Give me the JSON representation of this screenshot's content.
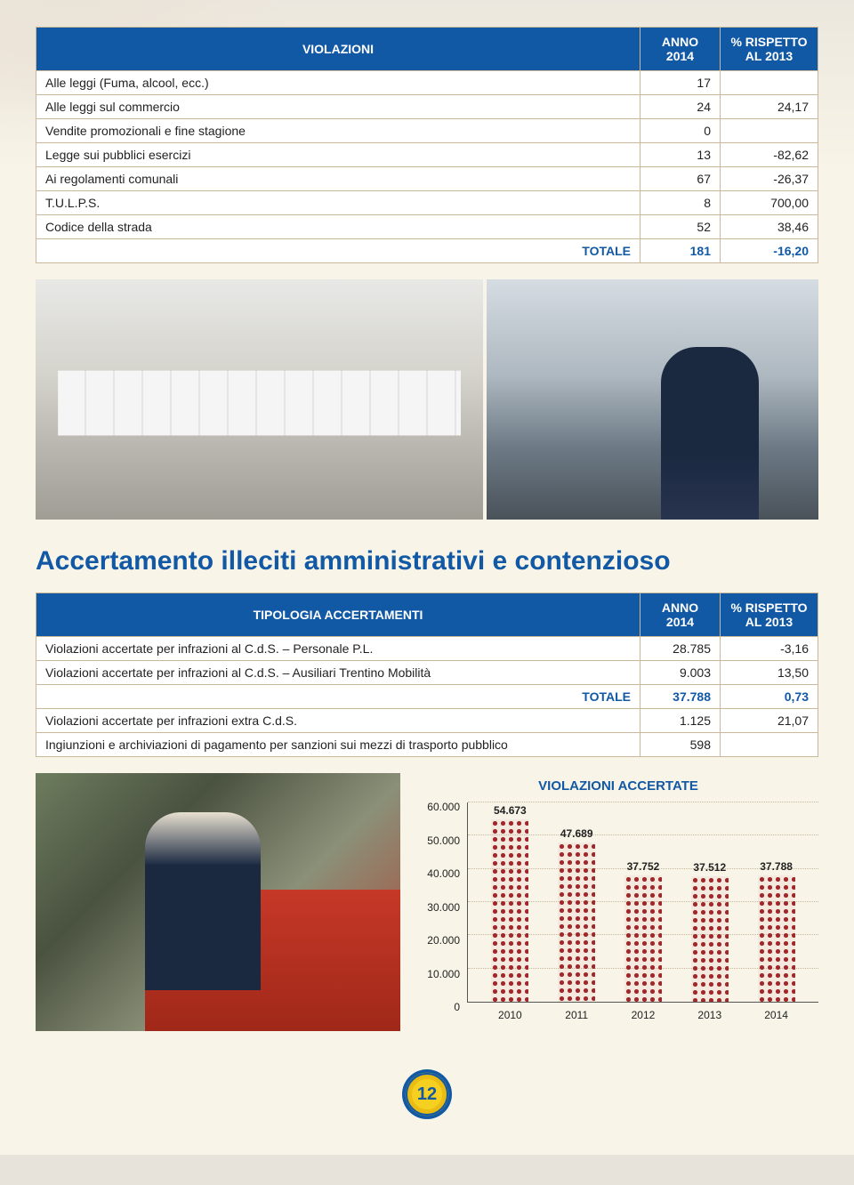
{
  "table1": {
    "headers": [
      "VIOLAZIONI",
      "ANNO 2014",
      "% RISPETTO AL 2013"
    ],
    "rows": [
      {
        "label": "Alle leggi (Fuma, alcool, ecc.)",
        "anno": "17",
        "pct": ""
      },
      {
        "label": "Alle leggi sul commercio",
        "anno": "24",
        "pct": "24,17"
      },
      {
        "label": "Vendite promozionali e fine stagione",
        "anno": "0",
        "pct": ""
      },
      {
        "label": "Legge sui pubblici esercizi",
        "anno": "13",
        "pct": "-82,62"
      },
      {
        "label": "Ai regolamenti comunali",
        "anno": "67",
        "pct": "-26,37"
      },
      {
        "label": "T.U.L.P.S.",
        "anno": "8",
        "pct": "700,00"
      },
      {
        "label": "Codice della strada",
        "anno": "52",
        "pct": "38,46"
      }
    ],
    "total": {
      "label": "TOTALE",
      "anno": "181",
      "pct": "-16,20"
    }
  },
  "section_title": "Accertamento illeciti amministrativi e contenzioso",
  "table2": {
    "headers": [
      "TIPOLOGIA ACCERTAMENTI",
      "ANNO 2014",
      "% RISPETTO AL 2013"
    ],
    "rows": [
      {
        "label": "Violazioni accertate per infrazioni al C.d.S. – Personale P.L.",
        "anno": "28.785",
        "pct": "-3,16",
        "bold": false
      },
      {
        "label": "Violazioni accertate per infrazioni al C.d.S. – Ausiliari Trentino Mobilità",
        "anno": "9.003",
        "pct": "13,50",
        "bold": false
      }
    ],
    "total": {
      "label": "TOTALE",
      "anno": "37.788",
      "pct": "0,73"
    },
    "after_total": [
      {
        "label": "Violazioni accertate per infrazioni extra C.d.S.",
        "anno": "1.125",
        "pct": "21,07"
      },
      {
        "label": "Ingiunzioni e archiviazioni di pagamento per sanzioni sui mezzi di trasporto pubblico",
        "anno": "598",
        "pct": ""
      }
    ]
  },
  "chart": {
    "title": "VIOLAZIONI ACCERTATE",
    "type": "bar",
    "ymax": 60000,
    "ytick_step": 10000,
    "yticks": [
      "0",
      "10.000",
      "20.000",
      "30.000",
      "40.000",
      "50.000",
      "60.000"
    ],
    "bars": [
      {
        "year": "2010",
        "value": 54673,
        "label": "54.673"
      },
      {
        "year": "2011",
        "value": 47689,
        "label": "47.689"
      },
      {
        "year": "2012",
        "value": 37752,
        "label": "37.752"
      },
      {
        "year": "2013",
        "value": 37512,
        "label": "37.512"
      },
      {
        "year": "2014",
        "value": 37788,
        "label": "37.788"
      }
    ],
    "bar_color": "#a0282a",
    "grid_color": "#c9b99a",
    "axis_color": "#555555",
    "background_color": "#f8f4e8",
    "value_fontsize": 12,
    "label_fontsize": 12,
    "title_fontsize": 15
  },
  "page_number": "12"
}
